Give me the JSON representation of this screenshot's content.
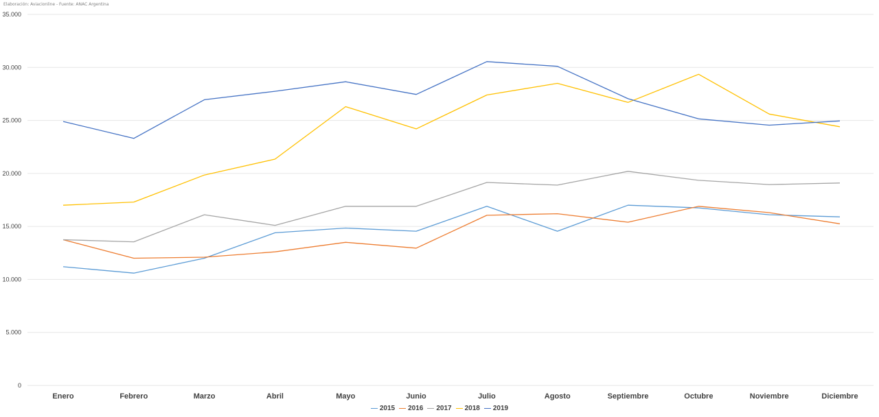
{
  "credit": "Elaboración: Aviacionline  -  Fuente: ANAC Argentina",
  "chart_data": {
    "type": "line",
    "title": "",
    "xlabel": "",
    "ylabel": "",
    "ylim": [
      0,
      35000
    ],
    "yticks": [
      0,
      5000,
      10000,
      15000,
      20000,
      25000,
      30000,
      35000
    ],
    "ytick_labels": [
      "0",
      "5.000",
      "10.000",
      "15.000",
      "20.000",
      "25.000",
      "30.000",
      "35.000"
    ],
    "grid": true,
    "legend_position": "bottom",
    "categories": [
      "Enero",
      "Febrero",
      "Marzo",
      "Abril",
      "Mayo",
      "Junio",
      "Julio",
      "Agosto",
      "Septiembre",
      "Octubre",
      "Noviembre",
      "Diciembre"
    ],
    "series": [
      {
        "name": "2015",
        "color": "#5B9BD5",
        "values": [
          11200,
          10600,
          12000,
          14400,
          14850,
          14550,
          16900,
          14550,
          17000,
          16750,
          16100,
          15900
        ]
      },
      {
        "name": "2016",
        "color": "#ED7D31",
        "values": [
          13750,
          12000,
          12100,
          12600,
          13500,
          12950,
          16050,
          16200,
          15400,
          16900,
          16300,
          15250
        ]
      },
      {
        "name": "2017",
        "color": "#A5A5A5",
        "values": [
          13750,
          13550,
          16100,
          15100,
          16900,
          16900,
          19150,
          18900,
          20200,
          19350,
          18950,
          19100
        ]
      },
      {
        "name": "2018",
        "color": "#FFC000",
        "values": [
          17000,
          17300,
          19850,
          21350,
          26300,
          24200,
          27400,
          28500,
          26700,
          29350,
          25600,
          24400
        ]
      },
      {
        "name": "2019",
        "color": "#4472C4",
        "values": [
          24900,
          23300,
          26950,
          27750,
          28650,
          27450,
          30550,
          30100,
          27050,
          25150,
          24550,
          24950
        ]
      }
    ]
  }
}
